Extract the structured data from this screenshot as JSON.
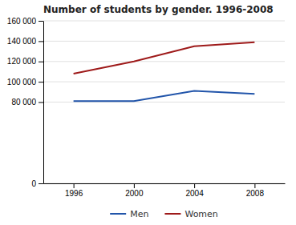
{
  "chart_data": {
    "type": "line",
    "title": "Number of students by gender. 1996-2008",
    "x": [
      1996,
      2000,
      2004,
      2008
    ],
    "series": [
      {
        "name": "Men",
        "color": "#2255aa",
        "values": [
          81000,
          81000,
          91000,
          88000
        ]
      },
      {
        "name": "Women",
        "color": "#9e1a1a",
        "values": [
          108000,
          120000,
          135000,
          139000
        ]
      }
    ],
    "xlim": [
      1994,
      2010
    ],
    "xticks": [
      1996,
      2000,
      2004,
      2008
    ],
    "ylim": [
      0,
      160000
    ],
    "yticks": [
      0,
      {
        "value": 80000,
        "label": "80 000"
      },
      {
        "value": 100000,
        "label": "100 000"
      },
      {
        "value": 120000,
        "label": "120 000"
      },
      {
        "value": 140000,
        "label": "140 000"
      },
      {
        "value": 160000,
        "label": "160 000"
      }
    ],
    "grid": "y",
    "legend": "bottom"
  }
}
